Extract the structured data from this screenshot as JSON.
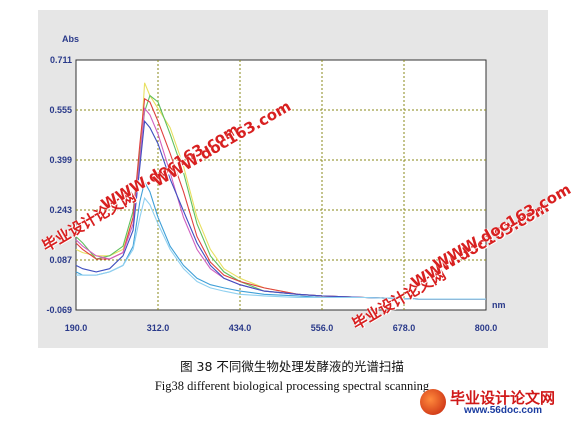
{
  "chart_data": {
    "type": "line",
    "ylabel": "Abs",
    "xlabel": "nm",
    "xlim": [
      190.0,
      800.0
    ],
    "ylim": [
      -0.069,
      0.711
    ],
    "xticks": [
      "190.0",
      "312.0",
      "434.0",
      "556.0",
      "678.0",
      "800.0"
    ],
    "yticks": [
      "0.711",
      "0.555",
      "0.399",
      "0.243",
      "0.087",
      "-0.069"
    ],
    "grid": true,
    "series": [
      {
        "color": "#e8e060",
        "x": [
          190,
          200,
          220,
          240,
          260,
          275,
          285,
          292,
          300,
          312,
          330,
          350,
          370,
          390,
          410,
          434,
          470,
          520,
          556,
          620,
          700,
          800
        ],
        "y": [
          0.12,
          0.11,
          0.1,
          0.1,
          0.12,
          0.22,
          0.4,
          0.64,
          0.6,
          0.56,
          0.5,
          0.38,
          0.22,
          0.12,
          0.06,
          0.03,
          0.0,
          -0.02,
          -0.025,
          -0.03,
          -0.035,
          -0.035
        ]
      },
      {
        "color": "#60c060",
        "x": [
          190,
          200,
          220,
          240,
          260,
          275,
          285,
          292,
          300,
          312,
          330,
          350,
          370,
          390,
          410,
          434,
          470,
          520,
          556,
          620,
          700,
          800
        ],
        "y": [
          0.16,
          0.14,
          0.09,
          0.1,
          0.13,
          0.24,
          0.42,
          0.55,
          0.6,
          0.58,
          0.48,
          0.36,
          0.2,
          0.1,
          0.05,
          0.02,
          -0.01,
          -0.02,
          -0.025,
          -0.03,
          -0.035,
          -0.035
        ]
      },
      {
        "color": "#e04040",
        "x": [
          190,
          200,
          220,
          240,
          260,
          275,
          285,
          292,
          300,
          312,
          330,
          350,
          370,
          390,
          410,
          434,
          470,
          520,
          556,
          620,
          700,
          800
        ],
        "y": [
          0.14,
          0.12,
          0.09,
          0.09,
          0.11,
          0.22,
          0.45,
          0.59,
          0.58,
          0.52,
          0.42,
          0.3,
          0.16,
          0.08,
          0.04,
          0.02,
          0.0,
          -0.02,
          -0.025,
          -0.03,
          -0.035,
          -0.035
        ]
      },
      {
        "color": "#d060c0",
        "x": [
          190,
          200,
          220,
          240,
          260,
          275,
          285,
          292,
          300,
          312,
          330,
          350,
          370,
          390,
          410,
          434,
          470,
          520,
          556,
          620,
          700,
          800
        ],
        "y": [
          0.15,
          0.13,
          0.1,
          0.09,
          0.11,
          0.2,
          0.4,
          0.56,
          0.54,
          0.48,
          0.36,
          0.22,
          0.12,
          0.06,
          0.03,
          0.01,
          -0.01,
          -0.02,
          -0.025,
          -0.03,
          -0.035,
          -0.035
        ]
      },
      {
        "color": "#4050c0",
        "x": [
          190,
          200,
          220,
          240,
          260,
          275,
          285,
          292,
          300,
          312,
          330,
          350,
          370,
          390,
          410,
          434,
          470,
          520,
          556,
          620,
          700,
          800
        ],
        "y": [
          0.07,
          0.06,
          0.05,
          0.06,
          0.1,
          0.18,
          0.38,
          0.52,
          0.5,
          0.45,
          0.34,
          0.24,
          0.14,
          0.07,
          0.03,
          0.01,
          -0.01,
          -0.02,
          -0.025,
          -0.03,
          -0.035,
          -0.035
        ]
      },
      {
        "color": "#40a0d8",
        "x": [
          190,
          200,
          220,
          240,
          260,
          275,
          285,
          292,
          300,
          312,
          330,
          350,
          370,
          390,
          410,
          434,
          470,
          520,
          556,
          620,
          700,
          800
        ],
        "y": [
          0.05,
          0.04,
          0.04,
          0.05,
          0.07,
          0.13,
          0.27,
          0.33,
          0.3,
          0.22,
          0.13,
          0.07,
          0.03,
          0.01,
          0.0,
          -0.01,
          -0.02,
          -0.025,
          -0.03,
          -0.03,
          -0.035,
          -0.035
        ]
      },
      {
        "color": "#90d0f0",
        "x": [
          190,
          200,
          220,
          240,
          260,
          275,
          285,
          292,
          300,
          312,
          330,
          350,
          370,
          390,
          410,
          434,
          470,
          520,
          556,
          620,
          700,
          800
        ],
        "y": [
          0.04,
          0.04,
          0.04,
          0.05,
          0.07,
          0.12,
          0.22,
          0.28,
          0.26,
          0.2,
          0.12,
          0.06,
          0.02,
          0.0,
          -0.01,
          -0.02,
          -0.025,
          -0.03,
          -0.03,
          -0.03,
          -0.035,
          -0.035
        ]
      }
    ]
  },
  "caption": {
    "cn": "图  38  不同微生物处理发酵液的光谱扫描",
    "en": "Fig38   different biological processing spectral scanning"
  },
  "watermarks": {
    "site_name": "毕业设计论文网",
    "url": "WWW.doc163.com"
  },
  "brand": {
    "name": "毕业设计论文网",
    "url": "www.56doc.com"
  }
}
